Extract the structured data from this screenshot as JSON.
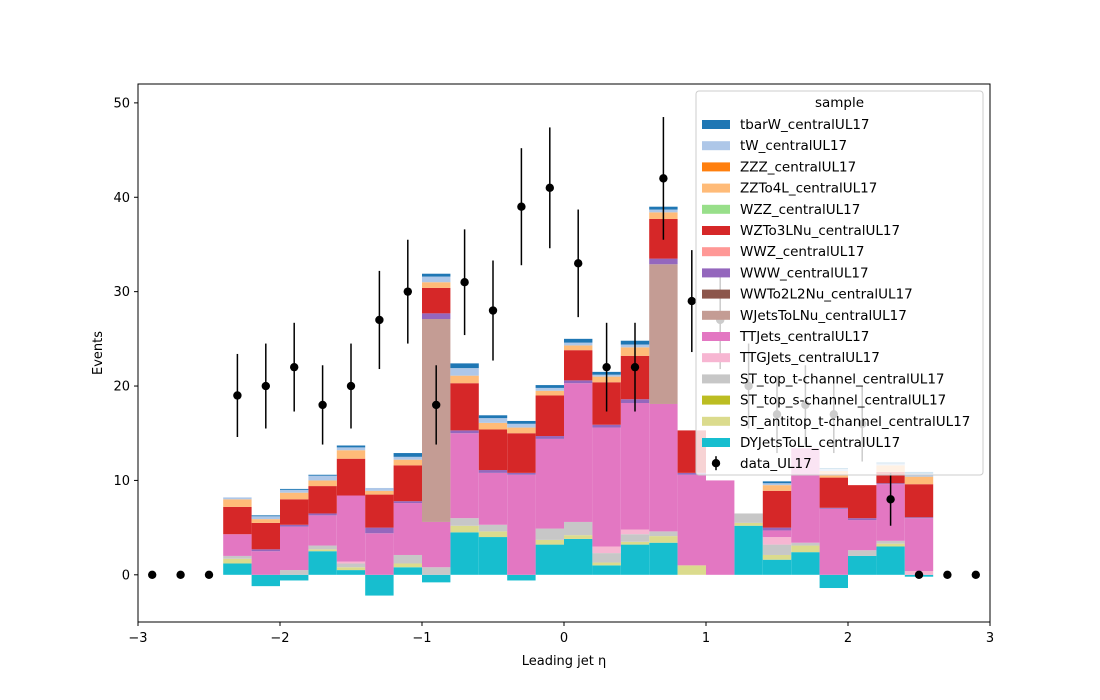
{
  "chart_data": {
    "type": "bar",
    "stacked": true,
    "title": "",
    "xlabel": "Leading jet  η",
    "ylabel": "Events",
    "xlim": [
      -3,
      3
    ],
    "ylim": [
      -5,
      52
    ],
    "x_ticks": [
      -3,
      -2,
      -1,
      0,
      1,
      2,
      3
    ],
    "x_tick_labels": [
      "−3",
      "−2",
      "−1",
      "0",
      "1",
      "2",
      "3"
    ],
    "y_ticks": [
      0,
      10,
      20,
      30,
      40,
      50
    ],
    "y_tick_labels": [
      "0",
      "10",
      "20",
      "30",
      "40",
      "50"
    ],
    "grid": false,
    "legend_title": "sample",
    "legend_position": "top-right",
    "bin_edges": [
      -3.0,
      -2.8,
      -2.6,
      -2.4,
      -2.2,
      -2.0,
      -1.8,
      -1.6,
      -1.4,
      -1.2,
      -1.0,
      -0.8,
      -0.6,
      -0.4,
      -0.2,
      0.0,
      0.2,
      0.4,
      0.6,
      0.8,
      1.0,
      1.2,
      1.4,
      1.6,
      1.8,
      2.0,
      2.2,
      2.4,
      2.6,
      2.8,
      3.0
    ],
    "series": [
      {
        "name": "DYJetsToLL_centralUL17",
        "color": "#17becf",
        "values": [
          0,
          0,
          0,
          1.2,
          -1.2,
          -0.6,
          2.5,
          0.5,
          -2.2,
          0.8,
          -0.8,
          4.5,
          4.0,
          -0.6,
          3.2,
          3.8,
          1.0,
          3.2,
          3.4,
          0,
          0,
          5.2,
          1.6,
          2.4,
          -1.4,
          2.0,
          3.0,
          -0.2,
          0,
          0
        ]
      },
      {
        "name": "ST_antitop_t-channel_centralUL17",
        "color": "#dbdb8d",
        "values": [
          0,
          0,
          0,
          0.5,
          0,
          0,
          0.2,
          0.3,
          0,
          0.4,
          0,
          0.7,
          0.6,
          0,
          0.5,
          0.4,
          0.3,
          0.3,
          0.7,
          1.0,
          0,
          0.3,
          0.5,
          0.7,
          0,
          0,
          0.3,
          0,
          0,
          0
        ]
      },
      {
        "name": "ST_top_s-channel_centralUL17",
        "color": "#bcbd22",
        "values": [
          0,
          0,
          0,
          0,
          0,
          0,
          0,
          0,
          0,
          0,
          0,
          0,
          0,
          0,
          0,
          0,
          0,
          0,
          0,
          0,
          0,
          0,
          0,
          0,
          0,
          0,
          0,
          0,
          0,
          0
        ]
      },
      {
        "name": "ST_top_t-channel_centralUL17",
        "color": "#c7c7c7",
        "values": [
          0,
          0,
          0,
          0.3,
          0,
          0.5,
          0.4,
          0.4,
          0,
          0.9,
          0.8,
          0.8,
          0.7,
          0,
          1.2,
          1.4,
          1.0,
          0.8,
          0.5,
          0,
          0,
          1.0,
          1.1,
          0.3,
          0,
          0.6,
          0.3,
          0,
          0,
          0
        ]
      },
      {
        "name": "TTGJets_centralUL17",
        "color": "#f7b6d2",
        "values": [
          0,
          0,
          0,
          0,
          0,
          0,
          0,
          0.2,
          0,
          0,
          0,
          0,
          0,
          0,
          0,
          0,
          0.7,
          0.5,
          0,
          0,
          0,
          0,
          0.8,
          0,
          0,
          0,
          0,
          0.4,
          0,
          0
        ]
      },
      {
        "name": "TTJets_centralUL17",
        "color": "#e377c2",
        "values": [
          0,
          0,
          0,
          2.3,
          2.5,
          4.6,
          3.2,
          7.0,
          4.4,
          5.5,
          4.8,
          9.0,
          5.5,
          10.6,
          9.5,
          14.7,
          12.6,
          13.4,
          13.5,
          9.6,
          10.0,
          0,
          0.7,
          10.0,
          7.0,
          3.2,
          6.0,
          5.6,
          0,
          0
        ]
      },
      {
        "name": "WJetsToLNu_centralUL17",
        "color": "#c49c94",
        "values": [
          0,
          0,
          0,
          0,
          0,
          0,
          0,
          0,
          0,
          0,
          21.5,
          0,
          0,
          0,
          0,
          0,
          0,
          0,
          14.8,
          0,
          0,
          0,
          0,
          0,
          0,
          0,
          0,
          0,
          0,
          0
        ]
      },
      {
        "name": "WWTo2L2Nu_centralUL17",
        "color": "#8c564b",
        "values": [
          0,
          0,
          0,
          0,
          0,
          0,
          0,
          0,
          0,
          0,
          0,
          0,
          0,
          0,
          0,
          0,
          0,
          0,
          0,
          0,
          0,
          0,
          0,
          0,
          0,
          0,
          0,
          0,
          0,
          0
        ]
      },
      {
        "name": "WWW_centralUL17",
        "color": "#9467bd",
        "values": [
          0,
          0,
          0,
          0,
          0.2,
          0.2,
          0.2,
          0,
          0.6,
          0.2,
          0.6,
          0.3,
          0.3,
          0.2,
          0.3,
          0.3,
          0.3,
          0.4,
          0.6,
          0.2,
          0,
          0,
          0.3,
          0,
          0.1,
          0.2,
          0.1,
          0.1,
          0,
          0
        ]
      },
      {
        "name": "WWZ_centralUL17",
        "color": "#ff9896",
        "values": [
          0,
          0,
          0,
          0,
          0,
          0,
          0,
          0,
          0,
          0,
          0,
          0,
          0,
          0,
          0,
          0,
          0,
          0,
          0,
          0,
          0,
          0,
          0,
          0,
          0,
          0,
          0,
          0,
          0,
          0
        ]
      },
      {
        "name": "WZTo3LNu_centralUL17",
        "color": "#d62728",
        "values": [
          0,
          0,
          0,
          2.9,
          2.8,
          2.7,
          2.9,
          3.9,
          3.5,
          3.8,
          2.7,
          5.0,
          4.3,
          4.2,
          4.3,
          3.2,
          4.5,
          4.6,
          4.2,
          4.5,
          0,
          0,
          3.9,
          0,
          3.2,
          3.5,
          1.2,
          3.5,
          0,
          0
        ]
      },
      {
        "name": "WZZ_centralUL17",
        "color": "#98df8a",
        "values": [
          0,
          0,
          0,
          0,
          0,
          0,
          0,
          0,
          0,
          0,
          0,
          0,
          0,
          0,
          0,
          0,
          0,
          0,
          0,
          0,
          0,
          0,
          0,
          0,
          0,
          0,
          0,
          0,
          0,
          0
        ]
      },
      {
        "name": "ZZTo4L_centralUL17",
        "color": "#ffbb78",
        "values": [
          0,
          0,
          0,
          0.8,
          0.4,
          0.7,
          0.6,
          0.9,
          0.4,
          0.6,
          0.6,
          0.8,
          0.7,
          0.6,
          0.5,
          0.5,
          0.6,
          0.9,
          0.7,
          0,
          0,
          0,
          0.6,
          0,
          0.7,
          0,
          0.7,
          0.8,
          0,
          0
        ]
      },
      {
        "name": "ZZZ_centralUL17",
        "color": "#ff7f0e",
        "values": [
          0,
          0,
          0,
          0,
          0,
          0,
          0,
          0,
          0,
          0,
          0,
          0,
          0,
          0,
          0,
          0,
          0,
          0,
          0,
          0,
          0,
          0,
          0,
          0,
          0,
          0,
          0,
          0,
          0,
          0
        ]
      },
      {
        "name": "tW_centralUL17",
        "color": "#aec7e8",
        "values": [
          0,
          0,
          0,
          0.2,
          0.3,
          0.3,
          0.5,
          0.3,
          0.3,
          0.3,
          0.6,
          0.8,
          0.5,
          0.4,
          0.3,
          0.3,
          0.2,
          0.3,
          0.3,
          0,
          0,
          0,
          0.2,
          0,
          0.2,
          0,
          0.2,
          0.3,
          0,
          0
        ]
      },
      {
        "name": "tbarW_centralUL17",
        "color": "#1f77b4",
        "values": [
          0,
          0,
          0,
          0,
          0.1,
          0.1,
          0.1,
          0.2,
          0,
          0.4,
          0.3,
          0.5,
          0.3,
          0.3,
          0.3,
          0.4,
          0.3,
          0.4,
          0.3,
          0,
          0,
          0,
          0.2,
          0,
          0.1,
          0,
          0.1,
          0.2,
          0,
          0
        ]
      }
    ],
    "data": {
      "name": "data_UL17",
      "color": "#000000",
      "x": [
        -2.9,
        -2.7,
        -2.5,
        -2.3,
        -2.1,
        -1.9,
        -1.7,
        -1.5,
        -1.3,
        -1.1,
        -0.9,
        -0.7,
        -0.5,
        -0.3,
        -0.1,
        0.1,
        0.3,
        0.5,
        0.7,
        0.9,
        1.1,
        1.3,
        1.5,
        1.7,
        1.9,
        2.1,
        2.3,
        2.5,
        2.7,
        2.9
      ],
      "y": [
        0,
        0,
        0,
        19,
        20,
        22,
        18,
        20,
        27,
        30,
        18,
        31,
        28,
        39,
        41,
        33,
        22,
        22,
        42,
        29,
        27,
        20,
        17,
        18,
        17,
        16,
        8,
        0,
        0,
        0
      ],
      "err": [
        0,
        0,
        0,
        4.4,
        4.5,
        4.7,
        4.2,
        4.5,
        5.2,
        5.5,
        4.2,
        5.6,
        5.3,
        6.2,
        6.4,
        5.7,
        4.7,
        4.7,
        6.5,
        5.4,
        5.2,
        4.5,
        4.1,
        4.2,
        4.1,
        4.0,
        2.8,
        0,
        0,
        0
      ]
    }
  }
}
